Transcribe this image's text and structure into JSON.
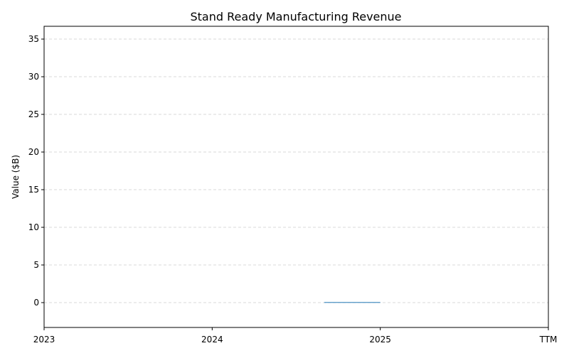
{
  "chart_data": {
    "type": "bar",
    "title": "Stand Ready Manufacturing Revenue",
    "xlabel": "",
    "ylabel": "Value ($B)",
    "x_ticks": [
      "2023",
      "2024",
      "2025",
      "TTM"
    ],
    "yticks": [
      0,
      5,
      10,
      15,
      20,
      25,
      30,
      35
    ],
    "ylim": [
      -3.3,
      36.7
    ],
    "grid": "y-dashed",
    "series": [
      {
        "color": "#1f77b4",
        "bars": [
          {
            "x_start": "2024-09",
            "x_end": "2025",
            "value": 0.02
          }
        ]
      }
    ]
  }
}
